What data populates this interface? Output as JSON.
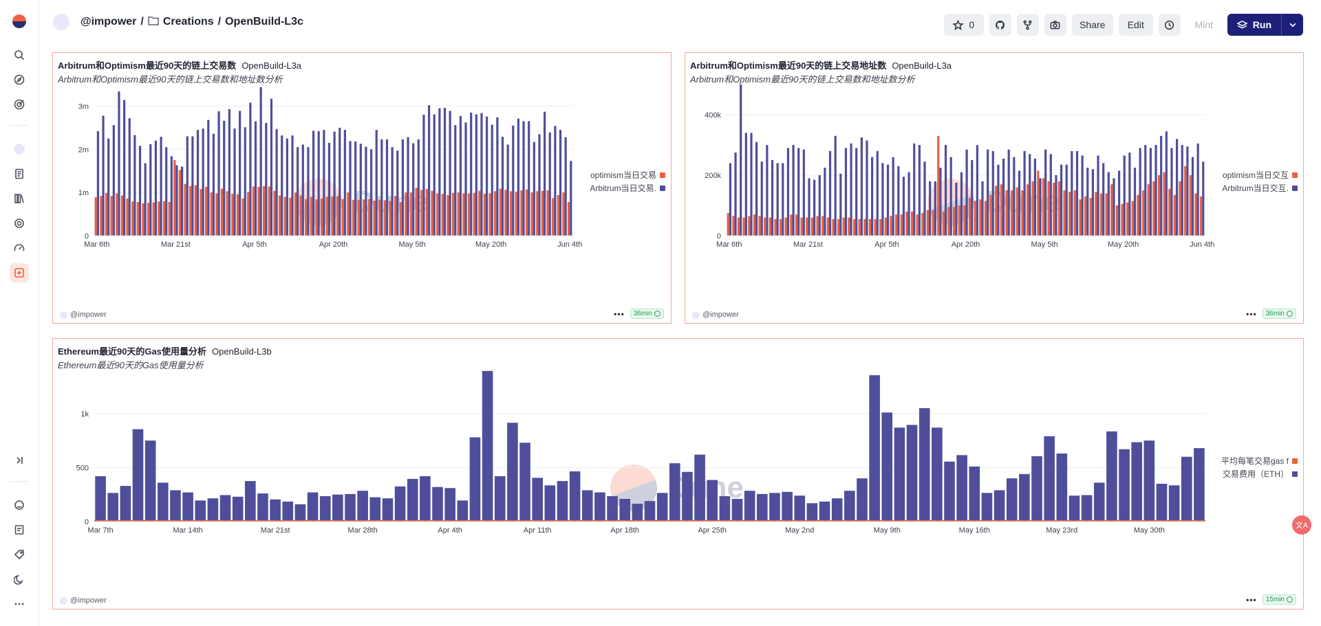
{
  "nav": {
    "user": "@impower",
    "separator1": "/",
    "folder": "Creations",
    "separator2": "/",
    "dashboard": "OpenBuild-L3c"
  },
  "actions": {
    "star_count": "0",
    "share": "Share",
    "edit": "Edit",
    "mint": "Mint",
    "run": "Run"
  },
  "colors": {
    "optimism": "#e8613f",
    "arbitrum": "#4f4e9a",
    "accent": "#1e1f78"
  },
  "panels": [
    {
      "title": "Arbitrum和Optimism最近90天的链上交易数",
      "query": "OpenBuild-L3a",
      "subtitle": "Arbitrum和Optimism最近90天的链上交易数和地址数分析",
      "owner": "@impower",
      "freshness": "36min",
      "watermark": "Dune"
    },
    {
      "title": "Arbitrum和Optimism最近90天的链上交易地址数",
      "query": "OpenBuild-L3a",
      "subtitle": "Arbitrum和Optimism最近90天的链上交易数和地址数分析",
      "owner": "@impower",
      "freshness": "36min",
      "watermark": "Dune"
    },
    {
      "title": "Ethereum最近90天的Gas使用量分析",
      "query": "OpenBuild-L3b",
      "subtitle": "Ethereum最近90天的Gas使用量分析",
      "owner": "@impower",
      "freshness": "15min",
      "watermark": "Dune"
    }
  ],
  "chart_data": [
    {
      "type": "bar",
      "ylim": [
        0,
        3500000
      ],
      "yticks": [
        {
          "v": 0,
          "label": "0"
        },
        {
          "v": 1000000,
          "label": "1m"
        },
        {
          "v": 2000000,
          "label": "2m"
        },
        {
          "v": 3000000,
          "label": "3m"
        }
      ],
      "xticks": [
        {
          "i": 0,
          "label": "Mar 6th"
        },
        {
          "i": 15,
          "label": "Mar 21st"
        },
        {
          "i": 30,
          "label": "Apr 5th"
        },
        {
          "i": 45,
          "label": "Apr 20th"
        },
        {
          "i": 60,
          "label": "May 5th"
        },
        {
          "i": 75,
          "label": "May 20th"
        },
        {
          "i": 90,
          "label": "Jun 4th"
        }
      ],
      "series": [
        {
          "name": "Arbitrum当日交易.",
          "color": "#4f4e9a",
          "values": [
            2420000,
            2780000,
            2250000,
            2560000,
            3340000,
            3140000,
            2720000,
            2330000,
            2080000,
            1680000,
            2120000,
            2200000,
            2290000,
            2050000,
            1840000,
            1630000,
            1600000,
            2300000,
            2300000,
            2450000,
            2480000,
            2680000,
            2360000,
            2880000,
            2660000,
            2930000,
            2480000,
            2890000,
            2510000,
            3080000,
            2650000,
            3440000,
            2610000,
            3170000,
            2470000,
            2320000,
            2250000,
            2320000,
            2050000,
            2110000,
            2050000,
            2430000,
            2420000,
            2450000,
            2150000,
            2410000,
            2500000,
            2450000,
            2190000,
            2180000,
            2130000,
            2060000,
            2000000,
            2450000,
            2230000,
            2230000,
            2050000,
            1970000,
            2230000,
            2280000,
            2140000,
            2230000,
            2800000,
            3020000,
            2810000,
            2950000,
            2960000,
            2890000,
            2560000,
            2770000,
            2620000,
            2850000,
            2810000,
            2840000,
            2760000,
            2570000,
            2740000,
            2290000,
            2110000,
            2550000,
            2710000,
            2650000,
            2650000,
            2170000,
            2350000,
            2870000,
            2390000,
            2540000,
            2450000,
            2280000,
            1730000
          ]
        },
        {
          "name": "optimism当日交易",
          "color": "#e8613f",
          "values": [
            890000,
            920000,
            990000,
            920000,
            980000,
            930000,
            860000,
            790000,
            780000,
            750000,
            760000,
            770000,
            790000,
            800000,
            780000,
            1750000,
            1520000,
            1200000,
            1150000,
            1170000,
            1080000,
            1130000,
            1000000,
            980000,
            1090000,
            1030000,
            970000,
            960000,
            860000,
            1010000,
            1140000,
            1130000,
            1150000,
            1140000,
            1040000,
            930000,
            900000,
            880000,
            1000000,
            930000,
            850000,
            900000,
            840000,
            860000,
            900000,
            910000,
            910000,
            850000,
            1000000,
            830000,
            830000,
            840000,
            850000,
            810000,
            830000,
            820000,
            800000,
            920000,
            780000,
            1000000,
            1000000,
            1110000,
            1060000,
            1080000,
            1040000,
            980000,
            970000,
            940000,
            990000,
            1000000,
            980000,
            980000,
            990000,
            1040000,
            970000,
            980000,
            1030000,
            1090000,
            1060000,
            1030000,
            1020000,
            1050000,
            1070000,
            1000000,
            1030000,
            1040000,
            1050000,
            870000,
            940000,
            1000000,
            780000
          ]
        }
      ]
    },
    {
      "type": "bar",
      "ylim": [
        0,
        500000
      ],
      "yticks": [
        {
          "v": 0,
          "label": "0"
        },
        {
          "v": 200000,
          "label": "200k"
        },
        {
          "v": 400000,
          "label": "400k"
        }
      ],
      "xticks": [
        {
          "i": 0,
          "label": "Mar 6th"
        },
        {
          "i": 15,
          "label": "Mar 21st"
        },
        {
          "i": 30,
          "label": "Apr 5th"
        },
        {
          "i": 45,
          "label": "Apr 20th"
        },
        {
          "i": 60,
          "label": "May 5th"
        },
        {
          "i": 75,
          "label": "May 20th"
        },
        {
          "i": 90,
          "label": "Jun 4th"
        }
      ],
      "series": [
        {
          "name": "Arbitrum当日交互.",
          "color": "#4f4e9a",
          "values": [
            240000,
            275000,
            500000,
            340000,
            340000,
            310000,
            245000,
            300000,
            250000,
            240000,
            240000,
            290000,
            300000,
            290000,
            285000,
            190000,
            185000,
            200000,
            225000,
            280000,
            330000,
            205000,
            290000,
            305000,
            290000,
            325000,
            315000,
            260000,
            280000,
            240000,
            235000,
            260000,
            230000,
            195000,
            210000,
            305000,
            300000,
            245000,
            180000,
            180000,
            225000,
            300000,
            260000,
            175000,
            210000,
            285000,
            250000,
            300000,
            180000,
            285000,
            280000,
            235000,
            255000,
            285000,
            260000,
            215000,
            280000,
            270000,
            255000,
            190000,
            285000,
            270000,
            200000,
            235000,
            235000,
            280000,
            280000,
            265000,
            225000,
            220000,
            265000,
            240000,
            210000,
            190000,
            215000,
            265000,
            275000,
            225000,
            290000,
            300000,
            290000,
            300000,
            330000,
            345000,
            290000,
            320000,
            300000,
            295000,
            260000,
            305000,
            245000
          ]
        },
        {
          "name": "optimism当日交互",
          "color": "#e8613f",
          "values": [
            75000,
            65000,
            60000,
            60000,
            65000,
            70000,
            65000,
            60000,
            60000,
            55000,
            55000,
            60000,
            70000,
            70000,
            60000,
            60000,
            60000,
            65000,
            65000,
            60000,
            55000,
            55000,
            60000,
            60000,
            55000,
            55000,
            55000,
            55000,
            55000,
            55000,
            60000,
            65000,
            70000,
            70000,
            80000,
            80000,
            70000,
            75000,
            85000,
            85000,
            330000,
            80000,
            95000,
            95000,
            100000,
            100000,
            125000,
            115000,
            120000,
            115000,
            135000,
            165000,
            170000,
            150000,
            150000,
            160000,
            150000,
            170000,
            180000,
            215000,
            190000,
            180000,
            175000,
            180000,
            150000,
            145000,
            150000,
            120000,
            130000,
            125000,
            145000,
            140000,
            140000,
            170000,
            100000,
            105000,
            110000,
            115000,
            135000,
            150000,
            170000,
            180000,
            200000,
            210000,
            155000,
            135000,
            180000,
            230000,
            200000,
            140000,
            130000,
            115000,
            80000
          ]
        }
      ]
    },
    {
      "type": "bar",
      "ylim": [
        0,
        1400
      ],
      "yticks": [
        {
          "v": 0,
          "label": "0"
        },
        {
          "v": 500,
          "label": "500"
        },
        {
          "v": 1000,
          "label": "1k"
        }
      ],
      "xticks": [
        {
          "i": 0,
          "label": "Mar 7th"
        },
        {
          "i": 7,
          "label": "Mar 14th"
        },
        {
          "i": 14,
          "label": "Mar 21st"
        },
        {
          "i": 21,
          "label": "Mar 28th"
        },
        {
          "i": 28,
          "label": "Apr 4th"
        },
        {
          "i": 35,
          "label": "Apr 11th"
        },
        {
          "i": 42,
          "label": "Apr 18th"
        },
        {
          "i": 49,
          "label": "Apr 25th"
        },
        {
          "i": 56,
          "label": "May 2nd"
        },
        {
          "i": 63,
          "label": "May 9th"
        },
        {
          "i": 70,
          "label": "May 16th"
        },
        {
          "i": 77,
          "label": "May 23rd"
        },
        {
          "i": 84,
          "label": "May 30th"
        }
      ],
      "series": [
        {
          "name": "交易费用（ETH）",
          "color": "#4f4e9a",
          "values": [
            420,
            265,
            330,
            855,
            750,
            360,
            290,
            270,
            195,
            215,
            245,
            230,
            375,
            260,
            205,
            185,
            160,
            270,
            235,
            250,
            255,
            285,
            225,
            215,
            325,
            395,
            420,
            320,
            310,
            195,
            780,
            1395,
            420,
            915,
            730,
            405,
            335,
            375,
            465,
            290,
            270,
            235,
            210,
            165,
            190,
            265,
            540,
            460,
            620,
            385,
            235,
            210,
            285,
            255,
            265,
            275,
            240,
            170,
            185,
            215,
            285,
            400,
            1355,
            1010,
            870,
            895,
            1050,
            870,
            555,
            615,
            510,
            265,
            290,
            400,
            440,
            605,
            790,
            630,
            240,
            245,
            360,
            835,
            670,
            735,
            750,
            350,
            335,
            600,
            680
          ]
        },
        {
          "name": "平均每笔交易gas f",
          "color": "#e8613f",
          "values": [
            2,
            2,
            2,
            2,
            2,
            2,
            2,
            2,
            2,
            2,
            2,
            2,
            2,
            2,
            2,
            2,
            2,
            2,
            2,
            2,
            2,
            2,
            2,
            2,
            2,
            2,
            2,
            2,
            2,
            2,
            2,
            2,
            2,
            2,
            2,
            2,
            2,
            2,
            2,
            2,
            2,
            2,
            2,
            2,
            2,
            2,
            2,
            2,
            2,
            2,
            2,
            2,
            2,
            2,
            2,
            2,
            2,
            2,
            2,
            2,
            2,
            2,
            2,
            2,
            2,
            2,
            2,
            2,
            2,
            2,
            2,
            2,
            2,
            2,
            2,
            2,
            2,
            2,
            2,
            2,
            2,
            2,
            2,
            2,
            2,
            2,
            2,
            2,
            2
          ]
        }
      ]
    }
  ]
}
